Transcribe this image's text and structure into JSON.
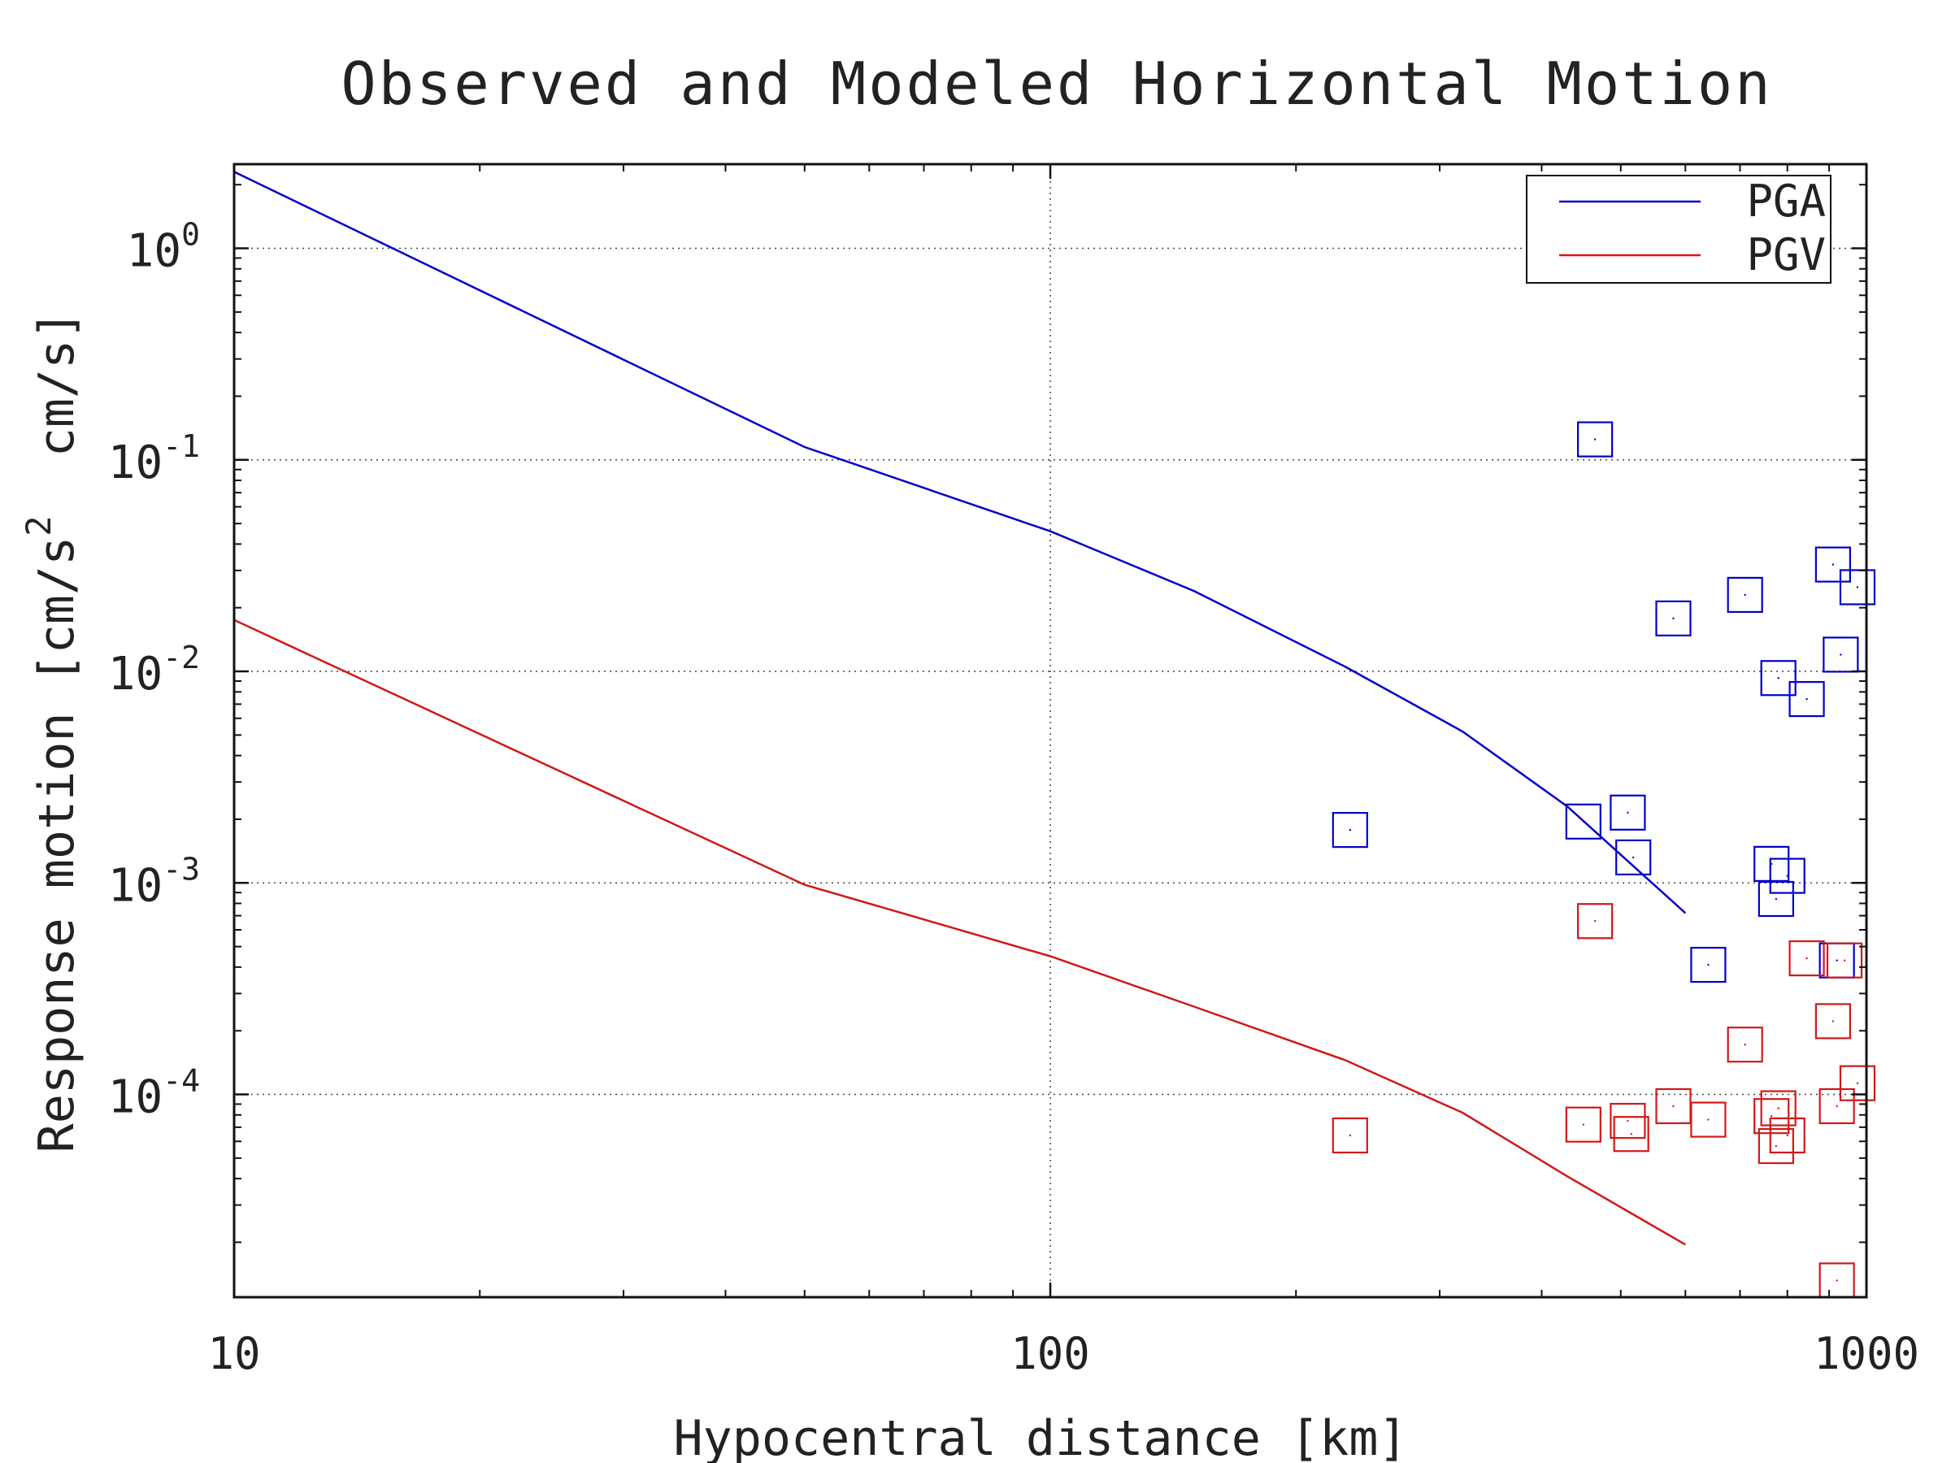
{
  "chart_data": {
    "type": "scatter",
    "title": "Observed and Modeled Horizontal Motion",
    "xlabel": "Hypocentral distance [km]",
    "ylabel_parts": [
      "Response motion [cm/s",
      "2",
      "  cm/s]"
    ],
    "xscale": "log",
    "yscale": "log",
    "xlim": [
      10,
      1000
    ],
    "ylim": [
      1.1e-05,
      2.5
    ],
    "grid": true,
    "legend_position": "top-right",
    "x_ticks": [
      {
        "value": 10,
        "label": "10"
      },
      {
        "value": 100,
        "label": "100"
      },
      {
        "value": 1000,
        "label": "1000"
      }
    ],
    "y_ticks": [
      {
        "value": 1,
        "base": "10",
        "exp": "0"
      },
      {
        "value": 0.1,
        "base": "10",
        "exp": "-1"
      },
      {
        "value": 0.01,
        "base": "10",
        "exp": "-2"
      },
      {
        "value": 0.001,
        "base": "10",
        "exp": "-3"
      },
      {
        "value": 0.0001,
        "base": "10",
        "exp": "-4"
      }
    ],
    "series": [
      {
        "name": "PGA",
        "color": "#0000c8",
        "kind": "line",
        "x": [
          10,
          50,
          100,
          150,
          230,
          320,
          430,
          600
        ],
        "y": [
          2.3,
          0.115,
          0.046,
          0.024,
          0.0105,
          0.0052,
          0.0023,
          0.00072
        ]
      },
      {
        "name": "PGV",
        "color": "#d01818",
        "kind": "line",
        "x": [
          10,
          50,
          100,
          150,
          230,
          320,
          430,
          600
        ],
        "y": [
          0.0175,
          0.00098,
          0.00045,
          0.00026,
          0.000145,
          8.2e-05,
          4.1e-05,
          1.95e-05
        ]
      },
      {
        "color": "#0000c8",
        "kind": "markers",
        "x": [
          233,
          450,
          465,
          510,
          518,
          580,
          640,
          710,
          765,
          775,
          780,
          800,
          845,
          910,
          920,
          930,
          975
        ],
        "y": [
          0.00178,
          0.00195,
          0.125,
          0.00215,
          0.00132,
          0.0178,
          0.00041,
          0.023,
          0.00123,
          0.00084,
          0.0093,
          0.00108,
          0.0074,
          0.032,
          0.00043,
          0.012,
          0.025
        ]
      },
      {
        "color": "#d01818",
        "kind": "markers",
        "x": [
          233,
          450,
          465,
          510,
          515,
          580,
          640,
          710,
          765,
          775,
          780,
          800,
          845,
          910,
          920,
          920,
          940,
          975
        ],
        "y": [
          6.4e-05,
          7.2e-05,
          0.00066,
          7.5e-05,
          6.5e-05,
          8.8e-05,
          7.6e-05,
          0.000172,
          7.9e-05,
          5.7e-05,
          8.6e-05,
          6.4e-05,
          0.00044,
          0.000222,
          1.32e-05,
          8.8e-05,
          0.00043,
          0.000113
        ]
      }
    ]
  }
}
